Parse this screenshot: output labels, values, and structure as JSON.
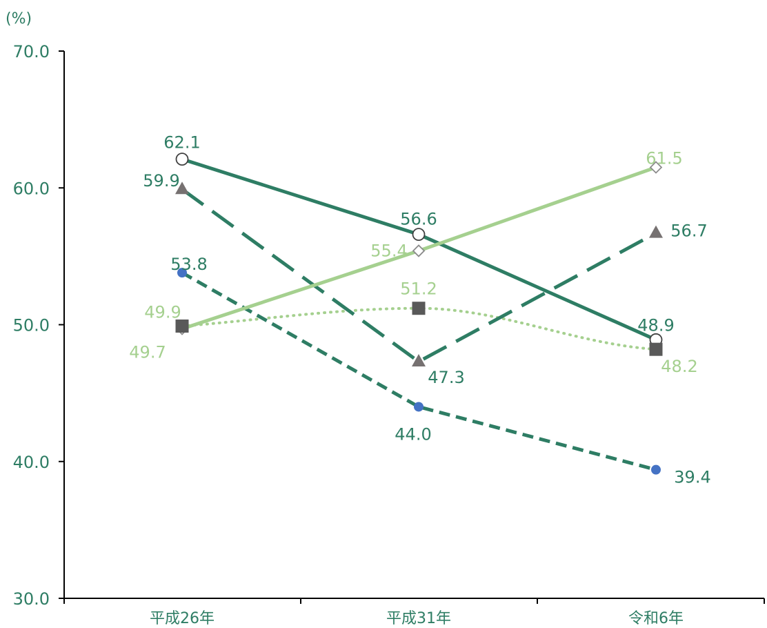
{
  "chart_data": {
    "type": "line",
    "ylabel": "(%)",
    "ylim": [
      30,
      70
    ],
    "yticks": [
      "30.0",
      "40.0",
      "50.0",
      "60.0",
      "70.0"
    ],
    "categories": [
      "平成26年",
      "平成31年",
      "令和6年"
    ],
    "legend": "none",
    "grid": false,
    "series": [
      {
        "values": [
          62.1,
          56.6,
          48.9
        ],
        "labels": [
          "62.1",
          "56.6",
          "48.9"
        ],
        "color": "#2e7d64",
        "label_color": "#2e7d64",
        "line_style": "solid",
        "marker": "circle-open"
      },
      {
        "values": [
          59.9,
          47.3,
          56.7
        ],
        "labels": [
          "59.9",
          "47.3",
          "56.7"
        ],
        "color": "#2e7d64",
        "label_color": "#2e7d64",
        "line_style": "long-dash",
        "marker": "triangle"
      },
      {
        "values": [
          53.8,
          44.0,
          39.4
        ],
        "labels": [
          "53.8",
          "44.0",
          "39.4"
        ],
        "color": "#2e7d64",
        "label_color": "#2e7d64",
        "marker_color": "#4472c4",
        "line_style": "dash",
        "marker": "dot"
      },
      {
        "values": [
          49.7,
          55.4,
          61.5
        ],
        "labels": [
          "49.7",
          "55.4",
          "61.5"
        ],
        "color": "#a5d08f",
        "label_color": "#a5d08f",
        "line_style": "solid",
        "marker": "diamond-open"
      },
      {
        "values": [
          49.9,
          51.2,
          48.2
        ],
        "labels": [
          "49.9",
          "51.2",
          "48.2"
        ],
        "color": "#a5d08f",
        "label_color": "#a5d08f",
        "marker_color": "#595959",
        "line_style": "dotted",
        "marker": "square"
      }
    ]
  }
}
